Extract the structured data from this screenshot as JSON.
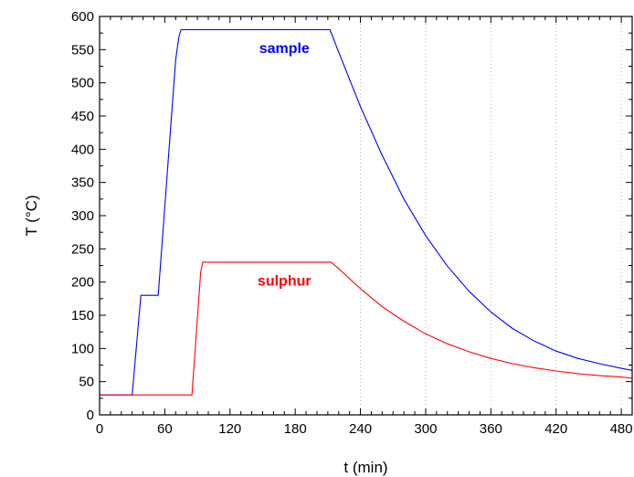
{
  "chart_data": {
    "type": "line",
    "title": "",
    "xlabel": "t (min)",
    "ylabel": "T (°C)",
    "xlim": [
      0,
      490
    ],
    "ylim": [
      0,
      600
    ],
    "x_ticks": [
      0,
      60,
      120,
      180,
      240,
      300,
      360,
      420,
      480
    ],
    "y_ticks": [
      0,
      50,
      100,
      150,
      200,
      250,
      300,
      350,
      400,
      450,
      500,
      550,
      600
    ],
    "grid": "vertical dotted lines at x = 240, 300, 360, 420, 480",
    "grid_x": [
      240,
      300,
      360,
      420,
      480
    ],
    "series": [
      {
        "name": "sample",
        "color": "#0000ff",
        "x": [
          0,
          30,
          38,
          39,
          53,
          54,
          70,
          73,
          75,
          100,
          150,
          212,
          220,
          240,
          260,
          280,
          300,
          320,
          340,
          360,
          380,
          400,
          420,
          440,
          460,
          480,
          490
        ],
        "y": [
          30,
          30,
          180,
          180,
          180,
          180,
          535,
          570,
          580,
          580,
          580,
          580,
          546,
          464,
          391,
          325,
          270,
          224,
          186,
          155,
          130,
          111,
          96,
          85,
          77,
          70,
          67
        ]
      },
      {
        "name": "sulphur",
        "color": "#ff0000",
        "x": [
          0,
          60,
          85,
          93,
          95,
          150,
          213,
          220,
          240,
          260,
          280,
          300,
          320,
          340,
          360,
          380,
          400,
          420,
          440,
          460,
          480,
          490
        ],
        "y": [
          30,
          30,
          30,
          215,
          230,
          230,
          230,
          220,
          190,
          163,
          141,
          122,
          107,
          95,
          85,
          77,
          71,
          66,
          62,
          59,
          57,
          55
        ]
      }
    ],
    "annotations": [
      {
        "text": "sample",
        "x": 170,
        "y": 553,
        "color": "#0000ff"
      },
      {
        "text": "sulphur",
        "x": 170,
        "y": 203,
        "color": "#ff0000"
      }
    ]
  }
}
